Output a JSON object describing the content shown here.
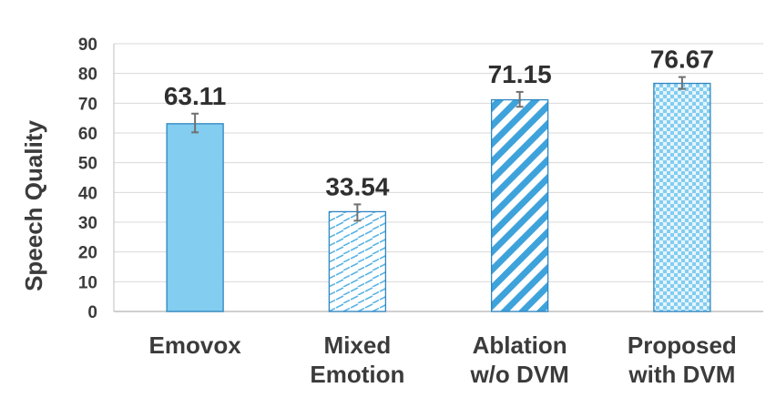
{
  "chart_data": {
    "type": "bar",
    "title": "",
    "xlabel": "",
    "ylabel": "Speech Quality",
    "ylim": [
      0,
      90
    ],
    "yticks": [
      0,
      10,
      20,
      30,
      40,
      50,
      60,
      70,
      80,
      90
    ],
    "grid": true,
    "categories": [
      [
        "Emovox"
      ],
      [
        "Mixed",
        "Emotion"
      ],
      [
        "Ablation",
        "w/o DVM"
      ],
      [
        "Proposed",
        "with DVM"
      ]
    ],
    "values": [
      63.11,
      33.54,
      71.15,
      76.67
    ],
    "value_labels": [
      "63.11",
      "33.54",
      "71.15",
      "76.67"
    ],
    "error_bars": [
      [
        60.2,
        66.5
      ],
      [
        30.5,
        36.0
      ],
      [
        68.8,
        73.8
      ],
      [
        74.8,
        78.8
      ]
    ],
    "bar_styles": [
      "solid",
      "dashed-diagonal",
      "wide-diagonal",
      "checker"
    ],
    "colors": {
      "fill": "#82cdf0",
      "edge": "#2e86c1",
      "grid": "#d9d9d9",
      "axis": "#bfbfbf",
      "error": "#707070"
    }
  }
}
